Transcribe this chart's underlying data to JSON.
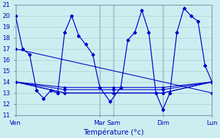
{
  "xlabel": "Température (°c)",
  "xlim": [
    0,
    28
  ],
  "ylim": [
    11,
    21
  ],
  "yticks": [
    11,
    12,
    13,
    14,
    15,
    16,
    17,
    18,
    19,
    20,
    21
  ],
  "bg_color": "#cdeef0",
  "line_color": "#0000cc",
  "grid_color": "#aaccd0",
  "vline_color": "#7799aa",
  "spine_color": "#7799aa",
  "tick_label_color": "#0000bb",
  "xlabel_color": "#0000bb",
  "xtick_positions": [
    0,
    12,
    14,
    21,
    28
  ],
  "xtick_labels": [
    "Ven",
    "Mar",
    "Sam",
    "Dim",
    "Lun"
  ],
  "vlines": [
    12,
    14,
    21
  ],
  "spiky_x": [
    0,
    1,
    2,
    3,
    4,
    5,
    6,
    7,
    8,
    9,
    10,
    11,
    12,
    13.5,
    15,
    16,
    17,
    18,
    19,
    20,
    21,
    22,
    23,
    24,
    25,
    26,
    27,
    28
  ],
  "spiky_y": [
    20,
    17.0,
    16.5,
    13.2,
    12.5,
    13.2,
    13.0,
    18.5,
    20.0,
    18.2,
    17.4,
    16.5,
    13.5,
    12.2,
    13.5,
    17.8,
    18.5,
    20.5,
    18.5,
    13.0,
    11.5,
    13.0,
    18.5,
    20.7,
    20.0,
    19.5,
    15.5,
    14.0
  ],
  "trend_x": [
    0,
    7,
    14,
    21,
    28
  ],
  "trend_lines": [
    [
      14.0,
      13.5,
      13.5,
      13.5,
      14.0
    ],
    [
      14.0,
      13.3,
      13.3,
      13.3,
      14.0
    ],
    [
      14.0,
      13.0,
      13.0,
      13.0,
      14.0
    ],
    [
      14.0,
      13.0,
      13.0,
      13.0,
      14.0
    ]
  ],
  "slope_line_x": [
    0,
    28
  ],
  "slope_line_y": [
    17.0,
    13.0
  ]
}
